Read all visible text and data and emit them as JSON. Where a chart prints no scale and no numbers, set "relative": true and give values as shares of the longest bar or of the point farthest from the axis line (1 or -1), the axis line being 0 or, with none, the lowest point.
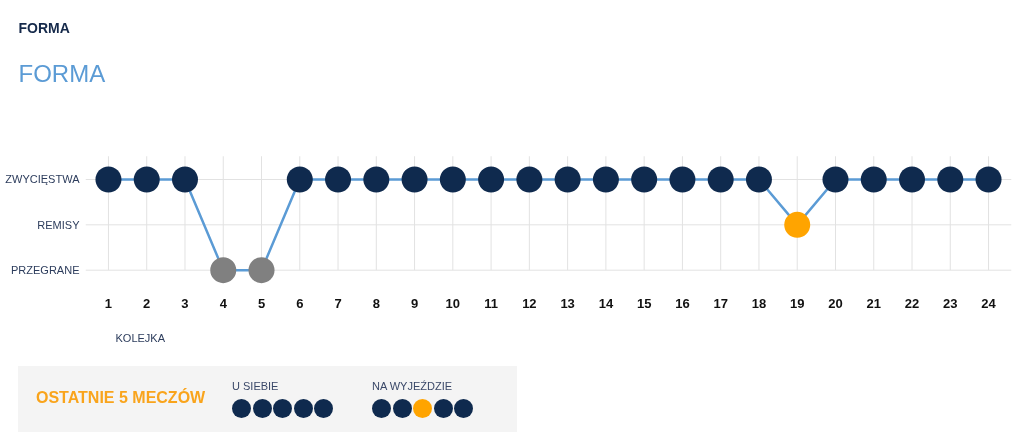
{
  "chart_data": [
    {
      "type": "line",
      "title": "FORMA",
      "subtitle": "FORMA",
      "xlabel": "KOLEJKA",
      "relative": true,
      "x": [
        1,
        2,
        3,
        4,
        5,
        6,
        7,
        8,
        9,
        10,
        11,
        12,
        13,
        14,
        15,
        16,
        17,
        18,
        19,
        20,
        21,
        22,
        23,
        24
      ],
      "xlim": [
        0.4,
        24.6
      ],
      "xticks": [
        1,
        2,
        3,
        4,
        5,
        6,
        7,
        8,
        9,
        10,
        11,
        12,
        13,
        14,
        15,
        16,
        17,
        18,
        19,
        20,
        21,
        22,
        23,
        24
      ],
      "grid": true,
      "marker": "circle",
      "annotations": [
        "ZWYCIĘSTWA",
        "REMISY",
        "PRZEGRANE"
      ],
      "series": [
        {
          "color": "#5b9bd5",
          "values": [
            1,
            1,
            1,
            0,
            0,
            1,
            1,
            1,
            1,
            1,
            1,
            1,
            1,
            1,
            1,
            1,
            1,
            1,
            0.5,
            1,
            1,
            1,
            1,
            1
          ],
          "colors": [
            "#0f2a4e",
            "#0f2a4e",
            "#0f2a4e",
            "#808080",
            "#808080",
            "#0f2a4e",
            "#0f2a4e",
            "#0f2a4e",
            "#0f2a4e",
            "#0f2a4e",
            "#0f2a4e",
            "#0f2a4e",
            "#0f2a4e",
            "#0f2a4e",
            "#0f2a4e",
            "#0f2a4e",
            "#0f2a4e",
            "#0f2a4e",
            "#ffa400",
            "#0f2a4e",
            "#0f2a4e",
            "#0f2a4e",
            "#0f2a4e",
            "#0f2a4e"
          ]
        }
      ]
    },
    {
      "type": "other",
      "title": "OSTATNIE 5 MECZÓW",
      "annotations": [
        "U SIEBIE",
        "NA WYJEŹDZIE"
      ]
    }
  ]
}
